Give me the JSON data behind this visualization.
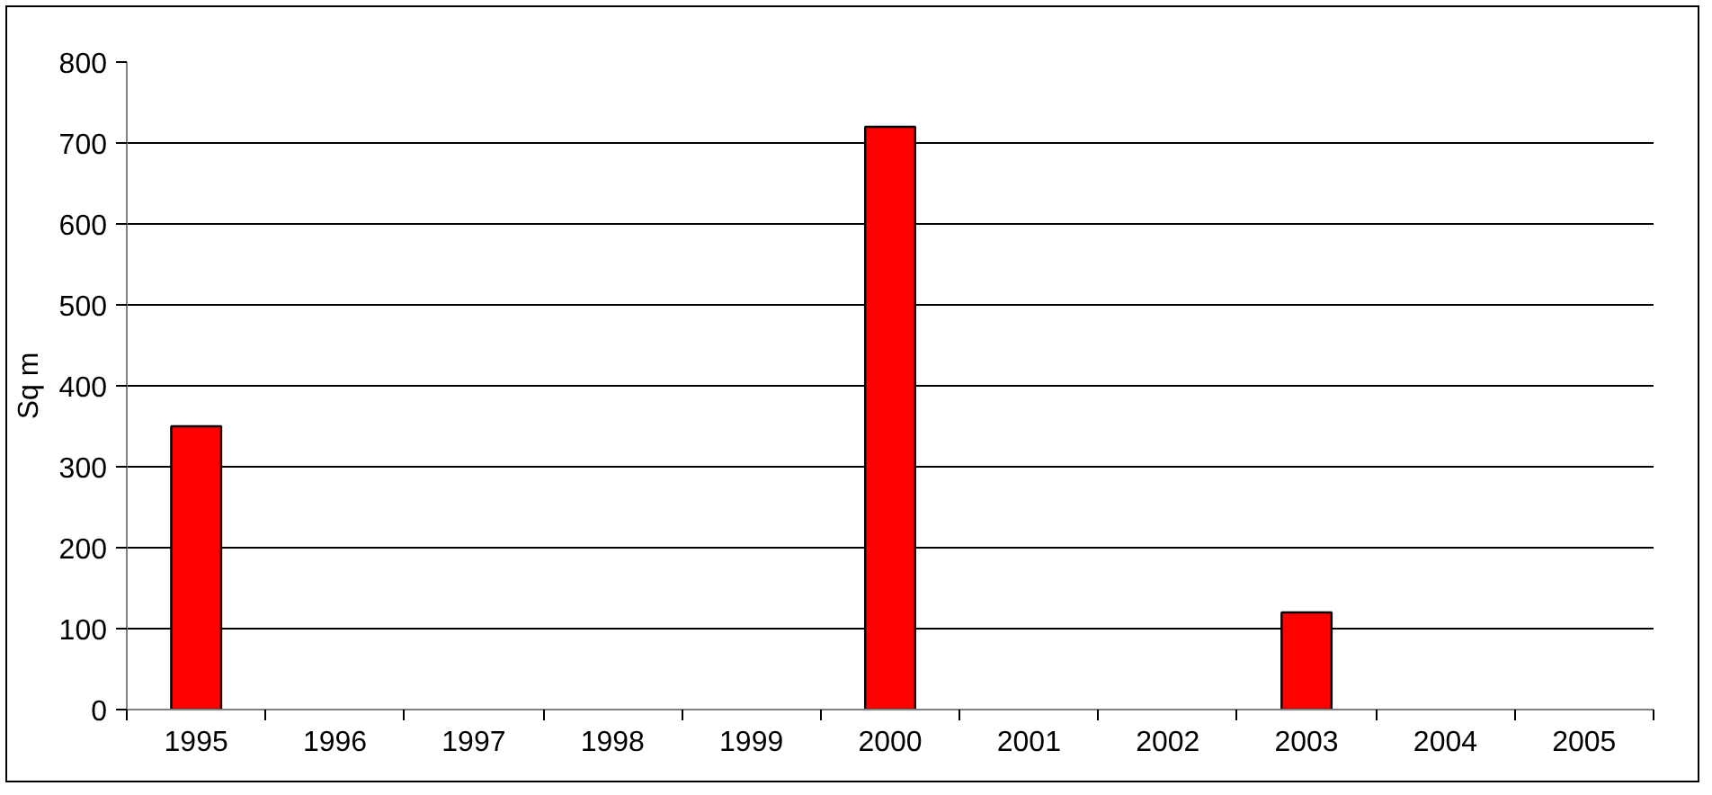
{
  "chart_data": {
    "type": "bar",
    "ylabel": "Sq m",
    "categories": [
      "1995",
      "1996",
      "1997",
      "1998",
      "1999",
      "2000",
      "2001",
      "2002",
      "2003",
      "2004",
      "2005"
    ],
    "values": [
      350,
      null,
      null,
      null,
      null,
      720,
      null,
      null,
      120,
      null,
      null
    ],
    "color": "#ff0000",
    "ylim": [
      0,
      800
    ],
    "yticks": [
      0,
      100,
      200,
      300,
      400,
      500,
      600,
      700,
      800
    ],
    "grid": "y"
  }
}
